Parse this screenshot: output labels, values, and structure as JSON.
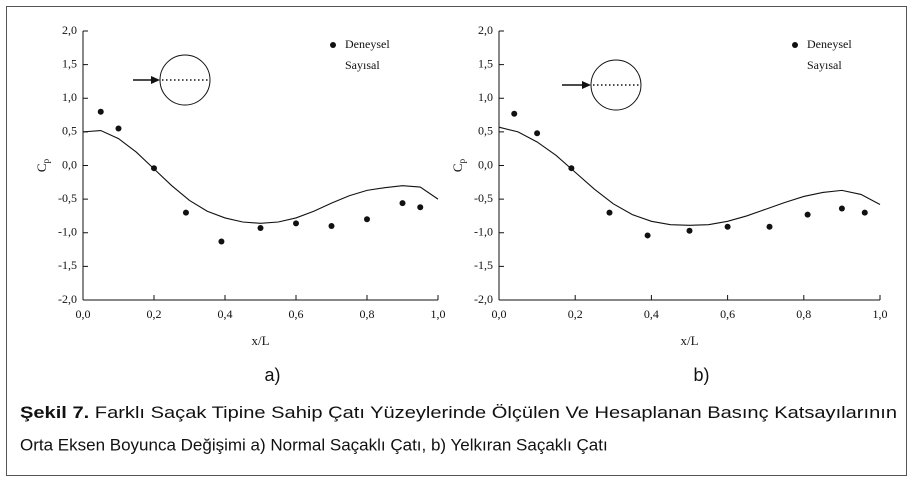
{
  "chart_data": [
    {
      "type": "scatter",
      "panel_label": "a)",
      "xlabel": "x/L",
      "ylabel": {
        "text": "C",
        "subscript": "p"
      },
      "xlim": [
        0,
        1
      ],
      "ylim": [
        -2,
        2
      ],
      "xticks": [
        {
          "value": 0,
          "label": "0,0"
        },
        {
          "value": 0.2,
          "label": "0,2"
        },
        {
          "value": 0.4,
          "label": "0,4"
        },
        {
          "value": 0.6,
          "label": "0,6"
        },
        {
          "value": 0.8,
          "label": "0,8"
        },
        {
          "value": 1,
          "label": "1,0"
        }
      ],
      "yticks": [
        {
          "value": -2,
          "label": "-2,0"
        },
        {
          "value": -1.5,
          "label": "-1,5"
        },
        {
          "value": -1,
          "label": "-1,0"
        },
        {
          "value": -0.5,
          "label": "-0,5"
        },
        {
          "value": 0,
          "label": "0,0"
        },
        {
          "value": 0.5,
          "label": "0,5"
        },
        {
          "value": 1,
          "label": "1,0"
        },
        {
          "value": 1.5,
          "label": "1,5"
        },
        {
          "value": 2,
          "label": "2,0"
        }
      ],
      "series": [
        {
          "name": "Deneysel",
          "style": "marker",
          "color": "#111111",
          "x": [
            0.05,
            0.1,
            0.2,
            0.29,
            0.39,
            0.5,
            0.6,
            0.7,
            0.8,
            0.9,
            0.95
          ],
          "values": [
            0.8,
            0.55,
            -0.04,
            -0.7,
            -1.13,
            -0.93,
            -0.86,
            -0.9,
            -0.8,
            -0.56,
            -0.62
          ]
        },
        {
          "name": "Sayısal",
          "style": "line",
          "color": "#111111",
          "x": [
            0,
            0.05,
            0.1,
            0.15,
            0.2,
            0.25,
            0.3,
            0.35,
            0.4,
            0.45,
            0.5,
            0.55,
            0.6,
            0.65,
            0.7,
            0.75,
            0.8,
            0.85,
            0.9,
            0.95,
            1.0
          ],
          "values": [
            0.5,
            0.52,
            0.4,
            0.2,
            -0.05,
            -0.3,
            -0.52,
            -0.68,
            -0.78,
            -0.84,
            -0.86,
            -0.84,
            -0.78,
            -0.68,
            -0.56,
            -0.45,
            -0.37,
            -0.33,
            -0.3,
            -0.32,
            -0.5
          ]
        }
      ]
    },
    {
      "type": "scatter",
      "panel_label": "b)",
      "xlabel": "x/L",
      "ylabel": {
        "text": "C",
        "subscript": "p"
      },
      "xlim": [
        0,
        1
      ],
      "ylim": [
        -2,
        2
      ],
      "xticks": [
        {
          "value": 0,
          "label": "0,0"
        },
        {
          "value": 0.2,
          "label": "0,2"
        },
        {
          "value": 0.4,
          "label": "0,4"
        },
        {
          "value": 0.6,
          "label": "0,6"
        },
        {
          "value": 0.8,
          "label": "0,8"
        },
        {
          "value": 1,
          "label": "1,0"
        }
      ],
      "yticks": [
        {
          "value": -2,
          "label": "-2,0"
        },
        {
          "value": -1.5,
          "label": "-1,5"
        },
        {
          "value": -1,
          "label": "-1,0"
        },
        {
          "value": -0.5,
          "label": "-0,5"
        },
        {
          "value": 0,
          "label": "0,0"
        },
        {
          "value": 0.5,
          "label": "0,5"
        },
        {
          "value": 1,
          "label": "1,0"
        },
        {
          "value": 1.5,
          "label": "1,5"
        },
        {
          "value": 2,
          "label": "2,0"
        }
      ],
      "series": [
        {
          "name": "Deneysel",
          "style": "marker",
          "color": "#111111",
          "x": [
            0.04,
            0.1,
            0.19,
            0.29,
            0.39,
            0.5,
            0.6,
            0.71,
            0.81,
            0.9,
            0.96
          ],
          "values": [
            0.77,
            0.48,
            -0.04,
            -0.7,
            -1.04,
            -0.97,
            -0.91,
            -0.91,
            -0.73,
            -0.64,
            -0.7
          ]
        },
        {
          "name": "Sayısal",
          "style": "line",
          "color": "#111111",
          "x": [
            0,
            0.05,
            0.1,
            0.15,
            0.2,
            0.25,
            0.3,
            0.35,
            0.4,
            0.45,
            0.5,
            0.55,
            0.6,
            0.65,
            0.7,
            0.75,
            0.8,
            0.85,
            0.9,
            0.95,
            1.0
          ],
          "values": [
            0.57,
            0.5,
            0.35,
            0.15,
            -0.1,
            -0.35,
            -0.57,
            -0.73,
            -0.83,
            -0.88,
            -0.89,
            -0.88,
            -0.83,
            -0.75,
            -0.65,
            -0.55,
            -0.46,
            -0.4,
            -0.37,
            -0.43,
            -0.58
          ]
        }
      ]
    }
  ],
  "caption": {
    "label": "Şekil 7.",
    "lines": [
      "Farklı Saçak Tipine Sahip Çatı Yüzeylerinde Ölçülen Ve Hesaplanan Basınç Katsayılarının",
      "Orta Eksen Boyunca Değişimi a) Normal Saçaklı Çatı, b) Yelkıran Saçaklı Çatı"
    ]
  }
}
